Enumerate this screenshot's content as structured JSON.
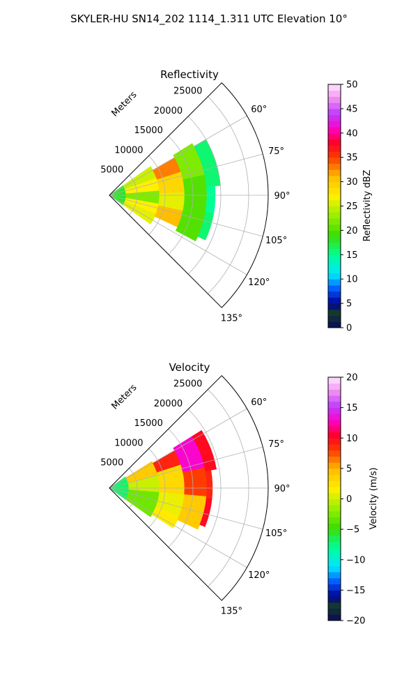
{
  "figure": {
    "title": "SKYLER-HU  SN14_202  1114_1.311 UTC Elevation 10°"
  },
  "chart_data": [
    {
      "type": "polar_sector",
      "title": "Reflectivity",
      "range_label": "Meters",
      "radial_ticks": [
        5000,
        10000,
        15000,
        20000,
        25000
      ],
      "radial_tick_labels": [
        "5000",
        "10000",
        "15000",
        "20000",
        "25000"
      ],
      "range_max": 28500,
      "azimuth_range_deg": [
        45,
        135
      ],
      "azimuth_ticks": [
        60,
        75,
        90,
        105,
        120,
        135
      ],
      "azimuth_tick_labels": [
        "60°",
        "75°",
        "90°",
        "105°",
        "120°",
        "135°"
      ],
      "colorbar": {
        "label": "Reflectivity dBZ",
        "range": [
          0,
          50
        ],
        "ticks": [
          0,
          5,
          10,
          15,
          20,
          25,
          30,
          35,
          40,
          45,
          50
        ],
        "tick_labels": [
          "0",
          "5",
          "10",
          "15",
          "20",
          "25",
          "30",
          "35",
          "40",
          "45",
          "50"
        ]
      },
      "echo_regions": [
        {
          "az": [
            55,
            125
          ],
          "range": [
            0,
            3000
          ],
          "value": 18
        },
        {
          "az": [
            55,
            70
          ],
          "range": [
            3000,
            9000
          ],
          "value": 25
        },
        {
          "az": [
            70,
            85
          ],
          "range": [
            3000,
            9000
          ],
          "value": 27
        },
        {
          "az": [
            85,
            100
          ],
          "range": [
            3000,
            9000
          ],
          "value": 22
        },
        {
          "az": [
            100,
            112
          ],
          "range": [
            3000,
            9000
          ],
          "value": 27
        },
        {
          "az": [
            112,
            125
          ],
          "range": [
            3000,
            9000
          ],
          "value": 26
        },
        {
          "az": [
            60,
            72
          ],
          "range": [
            9000,
            13500
          ],
          "value": 33
        },
        {
          "az": [
            72,
            88
          ],
          "range": [
            9000,
            13500
          ],
          "value": 29
        },
        {
          "az": [
            88,
            102
          ],
          "range": [
            9000,
            13500
          ],
          "value": 26
        },
        {
          "az": [
            102,
            115
          ],
          "range": [
            9000,
            13500
          ],
          "value": 31
        },
        {
          "az": [
            58,
            78
          ],
          "range": [
            13500,
            17500
          ],
          "value": 22
        },
        {
          "az": [
            78,
            102
          ],
          "range": [
            13500,
            17500
          ],
          "value": 20
        },
        {
          "az": [
            102,
            118
          ],
          "range": [
            13500,
            17500
          ],
          "value": 20
        },
        {
          "az": [
            60,
            85
          ],
          "range": [
            17500,
            20000
          ],
          "value": 16
        },
        {
          "az": [
            85,
            100
          ],
          "range": [
            17500,
            19000
          ],
          "value": 15
        },
        {
          "az": [
            100,
            115
          ],
          "range": [
            17500,
            19000
          ],
          "value": 16
        }
      ]
    },
    {
      "type": "polar_sector",
      "title": "Velocity",
      "range_label": "Meters",
      "radial_ticks": [
        5000,
        10000,
        15000,
        20000,
        25000
      ],
      "radial_tick_labels": [
        "5000",
        "10000",
        "15000",
        "20000",
        "25000"
      ],
      "range_max": 28500,
      "azimuth_range_deg": [
        45,
        135
      ],
      "azimuth_ticks": [
        60,
        75,
        90,
        105,
        120,
        135
      ],
      "azimuth_tick_labels": [
        "60°",
        "75°",
        "90°",
        "105°",
        "120°",
        "135°"
      ],
      "colorbar": {
        "label": "Velocity (m/s)",
        "range": [
          -20,
          20
        ],
        "ticks": [
          -20,
          -15,
          -10,
          -5,
          0,
          5,
          10,
          15,
          20
        ],
        "tick_labels": [
          "−20",
          "−15",
          "−10",
          "−5",
          "0",
          "5",
          "10",
          "15",
          "20"
        ]
      },
      "echo_regions": [
        {
          "az": [
            55,
            125
          ],
          "range": [
            0,
            3500
          ],
          "value": -7
        },
        {
          "az": [
            58,
            75
          ],
          "range": [
            3500,
            9000
          ],
          "value": 4
        },
        {
          "az": [
            75,
            95
          ],
          "range": [
            3500,
            9000
          ],
          "value": 0
        },
        {
          "az": [
            95,
            125
          ],
          "range": [
            3500,
            9000
          ],
          "value": -3
        },
        {
          "az": [
            60,
            72
          ],
          "range": [
            9000,
            13500
          ],
          "value": 9
        },
        {
          "az": [
            72,
            95
          ],
          "range": [
            9000,
            13500
          ],
          "value": 3
        },
        {
          "az": [
            95,
            112
          ],
          "range": [
            9000,
            13500
          ],
          "value": 1
        },
        {
          "az": [
            112,
            122
          ],
          "range": [
            9000,
            13500
          ],
          "value": 2
        },
        {
          "az": [
            58,
            78
          ],
          "range": [
            13500,
            17500
          ],
          "value": 13
        },
        {
          "az": [
            78,
            95
          ],
          "range": [
            13500,
            17500
          ],
          "value": 8
        },
        {
          "az": [
            95,
            115
          ],
          "range": [
            13500,
            17500
          ],
          "value": 4
        },
        {
          "az": [
            58,
            80
          ],
          "range": [
            17500,
            19500
          ],
          "value": 10
        },
        {
          "az": [
            80,
            96
          ],
          "range": [
            17500,
            18500
          ],
          "value": 9
        },
        {
          "az": [
            96,
            112
          ],
          "range": [
            17500,
            18500
          ],
          "value": 10
        }
      ]
    }
  ]
}
